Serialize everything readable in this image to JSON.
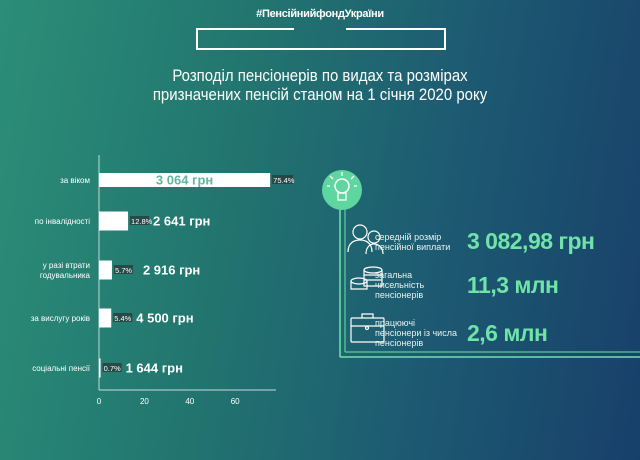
{
  "header": {
    "hashtag": "#ПенсійнийфондУкраїни",
    "title_line1": "Розподіл пенсіонерів по видах та розмірах",
    "title_line2": "призначених пенсій станом на 1 січня 2020 року"
  },
  "chart_data": {
    "type": "bar",
    "orientation": "horizontal",
    "categories": [
      "за віком",
      "по інвалідності",
      "у разі втрати годувальника",
      "за вислугу років",
      "соціальні пенсії"
    ],
    "category_lines": [
      [
        "за віком"
      ],
      [
        "по інвалідності"
      ],
      [
        "у разі втрати",
        "годувальника"
      ],
      [
        "за вислугу років"
      ],
      [
        "соціальні пенсії"
      ]
    ],
    "values": [
      75.4,
      12.8,
      5.7,
      5.4,
      0.7
    ],
    "data_labels": [
      "75.4%",
      "12.8%",
      "5.7%",
      "5.4%",
      "0.7%"
    ],
    "amounts": [
      "3 064 грн",
      "2 641 грн",
      "2 916 грн",
      "4 500 грн",
      "1 644 грн"
    ],
    "xticks": [
      "0",
      "20",
      "40",
      "60"
    ],
    "xlim": [
      0,
      75
    ],
    "bar_color": "#ffffff",
    "grid": false
  },
  "stats": [
    {
      "icon": "people-icon",
      "label": [
        "середній розмір",
        "пенсійної виплати"
      ],
      "value": "3 082,98 грн"
    },
    {
      "icon": "coins-icon",
      "label": [
        "загальна",
        "чисельність",
        "пенсіонерів"
      ],
      "value": "11,3 млн"
    },
    {
      "icon": "briefcase-icon",
      "label": [
        "працюючі",
        "пенсіонери із числа",
        "пенсіонерів"
      ],
      "value": "2,6 млн"
    }
  ],
  "colors": {
    "accent": "#6fe3a8",
    "bulb_circle": "#5fd6a0",
    "amount_in_bar": "#5fb7a0"
  }
}
